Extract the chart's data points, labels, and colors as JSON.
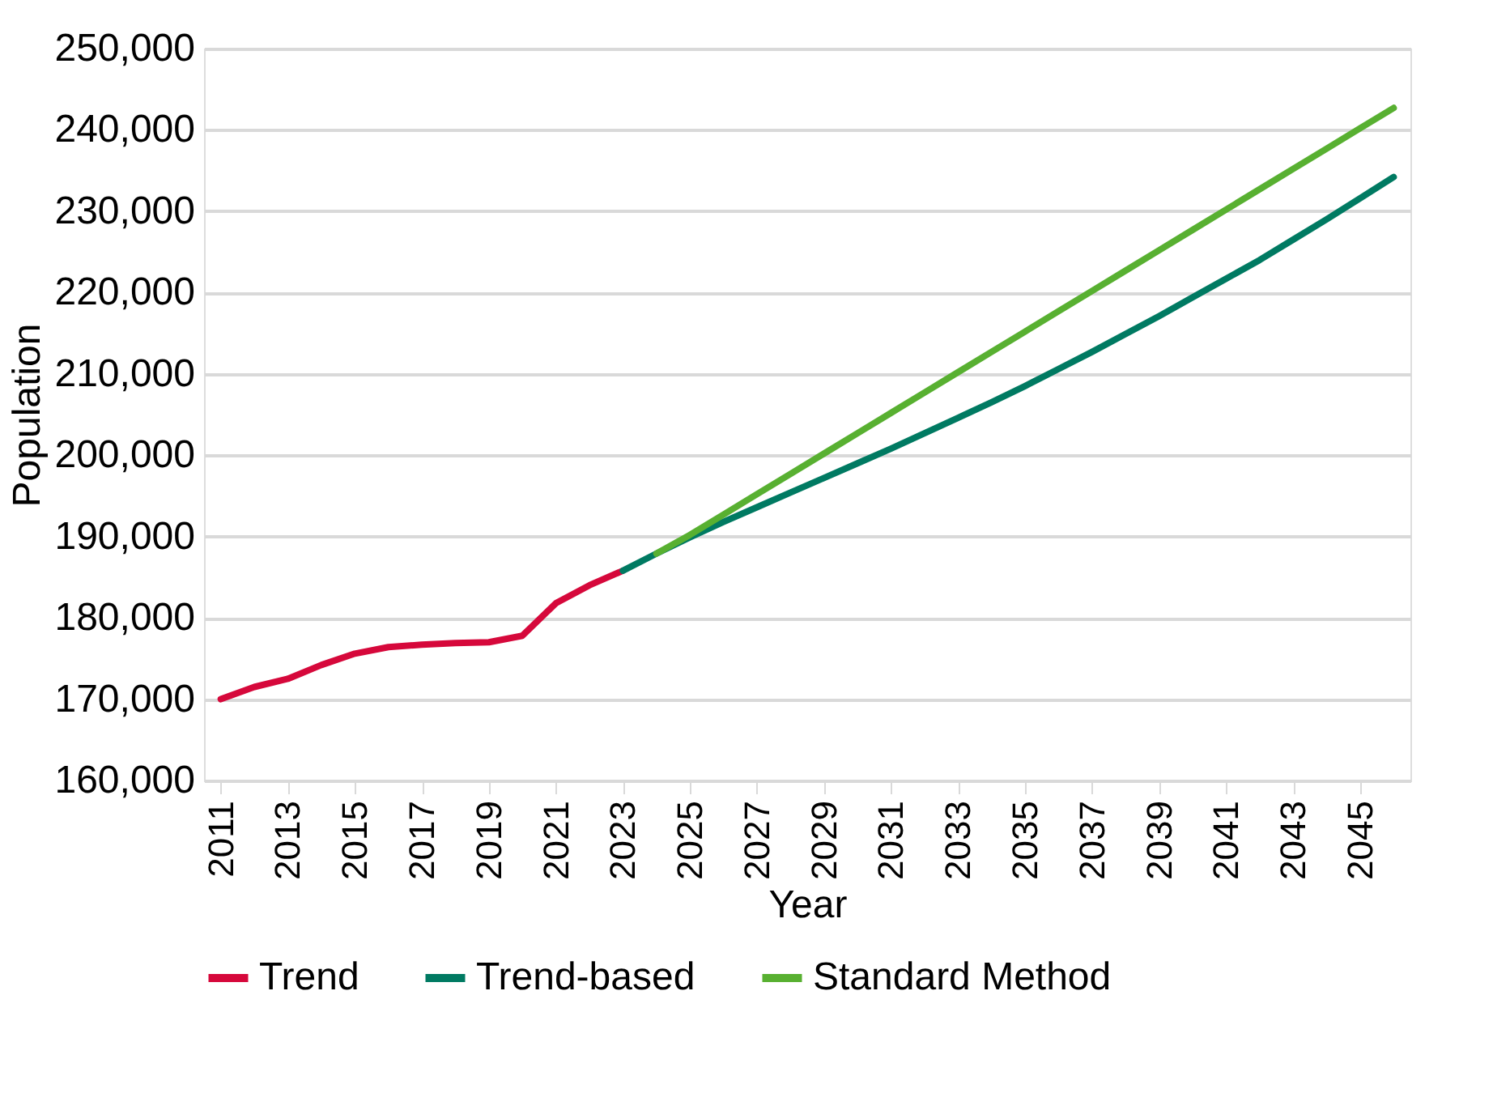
{
  "chart_data": {
    "type": "line",
    "xlabel": "Year",
    "ylabel": "Population",
    "xlim": [
      2010.5,
      2046.5
    ],
    "xticks": [
      2011,
      2013,
      2015,
      2017,
      2019,
      2021,
      2023,
      2025,
      2027,
      2029,
      2031,
      2033,
      2035,
      2037,
      2039,
      2041,
      2043,
      2045
    ],
    "ylim": [
      160000,
      250000
    ],
    "yticks": [
      {
        "value": 160000,
        "label": "160,000"
      },
      {
        "value": 170000,
        "label": "170,000"
      },
      {
        "value": 180000,
        "label": "180,000"
      },
      {
        "value": 190000,
        "label": "190,000"
      },
      {
        "value": 200000,
        "label": "200,000"
      },
      {
        "value": 210000,
        "label": "210,000"
      },
      {
        "value": 220000,
        "label": "220,000"
      },
      {
        "value": 230000,
        "label": "230,000"
      },
      {
        "value": 240000,
        "label": "240,000"
      },
      {
        "value": 250000,
        "label": "250,000"
      }
    ],
    "grid": "y",
    "legend": "bottom",
    "line_style": "solid",
    "marker": "none",
    "series": [
      {
        "name": "Trend",
        "color": "#d6083b",
        "x": [
          2011,
          2012,
          2013,
          2014,
          2015,
          2016,
          2017,
          2018,
          2019,
          2020,
          2021,
          2022,
          2023
        ],
        "values": [
          170000,
          171500,
          172500,
          174200,
          175600,
          176400,
          176700,
          176900,
          177000,
          177800,
          181800,
          184000,
          185800
        ]
      },
      {
        "name": "Trend-based",
        "color": "#007a62",
        "x": [
          2023,
          2024,
          2025,
          2026,
          2027,
          2028,
          2029,
          2030,
          2031,
          2032,
          2033,
          2034,
          2035,
          2036,
          2037,
          2038,
          2039,
          2040,
          2041,
          2042,
          2043,
          2044,
          2045,
          2046
        ],
        "values": [
          185800,
          187900,
          189900,
          191800,
          193600,
          195400,
          197200,
          199000,
          200800,
          202700,
          204600,
          206500,
          208500,
          210600,
          212700,
          214900,
          217100,
          219400,
          221700,
          224000,
          226500,
          229000,
          231600,
          234200
        ]
      },
      {
        "name": "Standard Method",
        "color": "#58b031",
        "x": [
          2024,
          2025,
          2026,
          2027,
          2028,
          2029,
          2030,
          2031,
          2032,
          2033,
          2034,
          2035,
          2036,
          2037,
          2038,
          2039,
          2040,
          2041,
          2042,
          2043,
          2044,
          2045,
          2046
        ],
        "values": [
          187900,
          190200,
          192700,
          195200,
          197700,
          200200,
          202700,
          205200,
          207700,
          210200,
          212700,
          215200,
          217700,
          220200,
          222700,
          225200,
          227700,
          230200,
          232700,
          235200,
          237700,
          240200,
          242700
        ]
      }
    ]
  }
}
